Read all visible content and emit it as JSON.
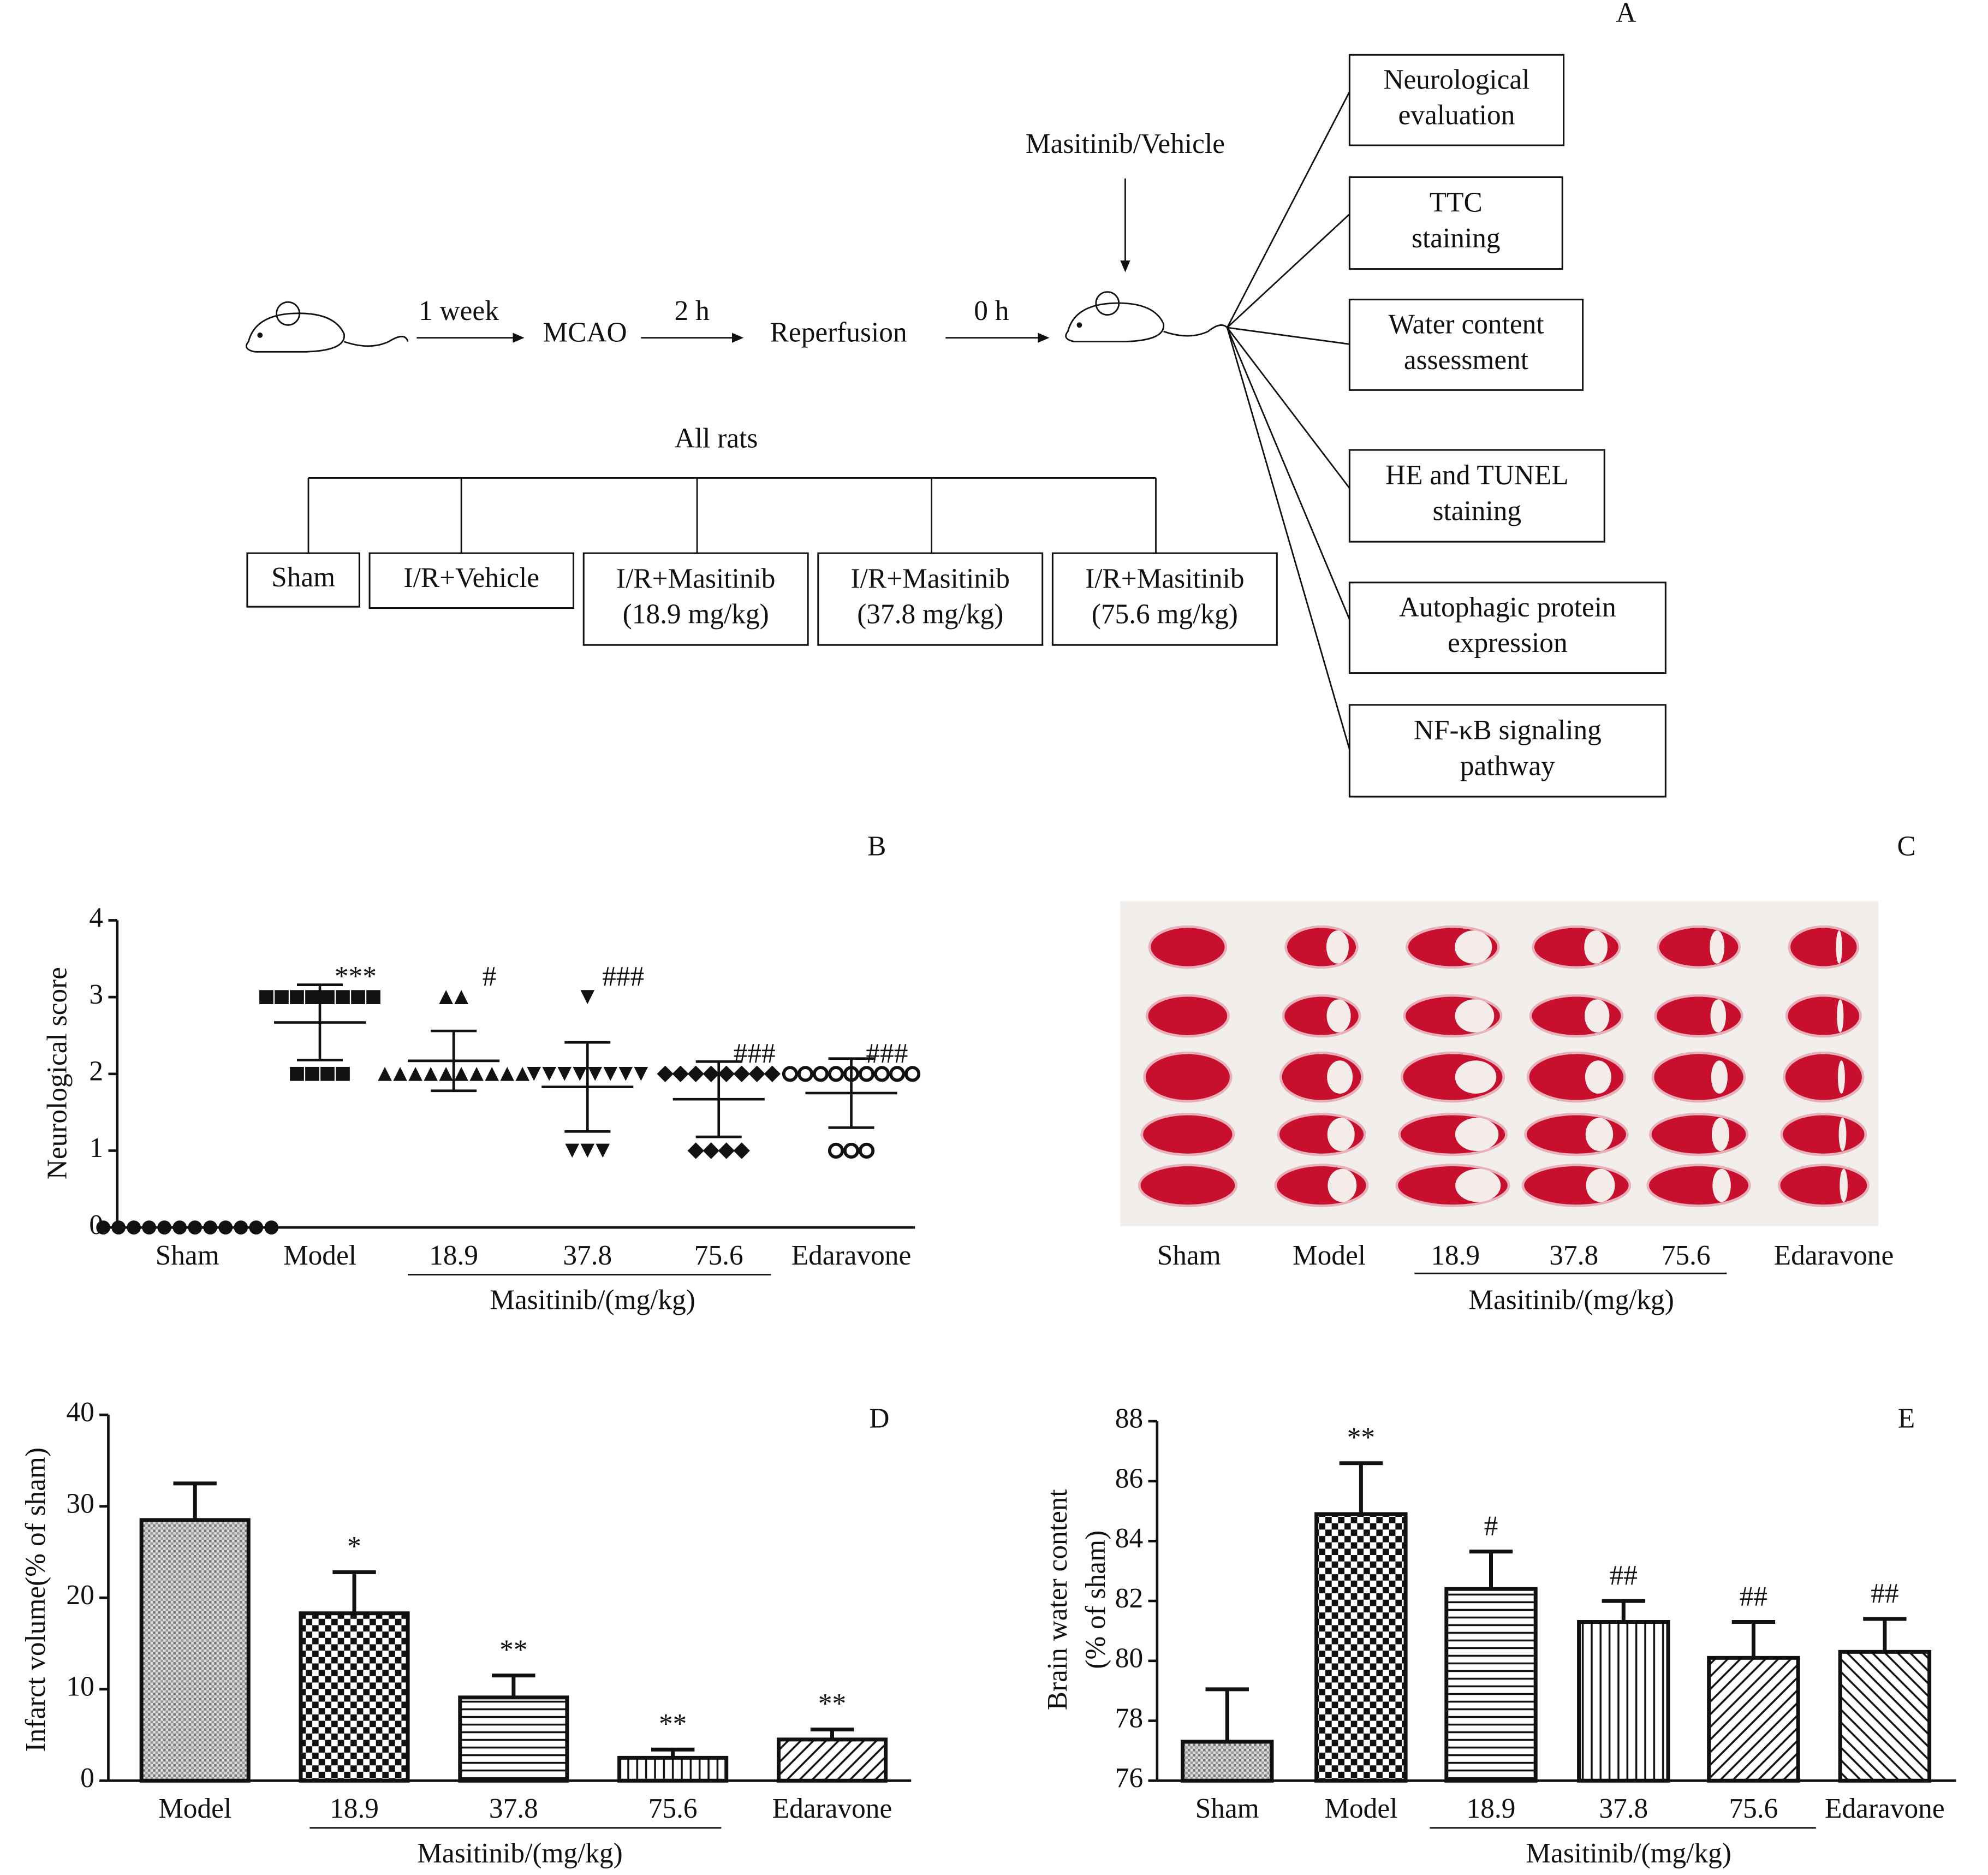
{
  "panel_labels": [
    "A",
    "B",
    "C",
    "D",
    "E"
  ],
  "diagram": {
    "timeline": [
      "1 week",
      "MCAO",
      "2 h",
      "Reperfusion",
      "0 h"
    ],
    "treatment": "Masitinib/Vehicle",
    "root": "All rats",
    "groups": [
      [
        "Sham"
      ],
      [
        "I/R+Vehicle"
      ],
      [
        "I/R+Masitinib",
        "(18.9 mg/kg)"
      ],
      [
        "I/R+Masitinib",
        "(37.8 mg/kg)"
      ],
      [
        "I/R+Masitinib",
        "(75.6 mg/kg)"
      ]
    ],
    "outcomes": [
      [
        "Neurological",
        "evaluation"
      ],
      [
        "TTC",
        "staining"
      ],
      [
        "Water content",
        "assessment"
      ],
      [
        "HE and TUNEL",
        "staining"
      ],
      [
        "Autophagic protein",
        "expression"
      ],
      [
        "NF-κB signaling",
        "pathway"
      ]
    ]
  },
  "brain_slices": {
    "categories": [
      "Sham",
      "Model",
      "18.9",
      "37.8",
      "75.6",
      "Edaravone"
    ],
    "group_label": "Masitinib/(mg/kg)"
  },
  "chart_data": [
    {
      "type": "dot",
      "y_label": "Neurological score",
      "categories": [
        "Sham",
        "Model",
        "18.9",
        "37.8",
        "75.6",
        "Edaravone"
      ],
      "group_label": "Masitinib/(mg/kg)",
      "points": [
        [
          0,
          0,
          0,
          0,
          0,
          0,
          0,
          0,
          0,
          0,
          0,
          0
        ],
        [
          3,
          3,
          3,
          3,
          3,
          3,
          3,
          3,
          2,
          2,
          2,
          2
        ],
        [
          3,
          3,
          2,
          2,
          2,
          2,
          2,
          2,
          2,
          2,
          2,
          2
        ],
        [
          3,
          2,
          2,
          2,
          2,
          2,
          2,
          2,
          2,
          1,
          1,
          1
        ],
        [
          2,
          2,
          2,
          2,
          2,
          2,
          2,
          2,
          1,
          1,
          1,
          1
        ],
        [
          2,
          2,
          2,
          2,
          2,
          2,
          2,
          2,
          2,
          1,
          1,
          1
        ]
      ],
      "markers": [
        "circle",
        "square",
        "triangle-up",
        "triangle-down",
        "diamond",
        "circle-open"
      ],
      "mean": [
        0,
        2.67,
        2.17,
        1.83,
        1.67,
        1.75
      ],
      "sd": [
        0,
        0.49,
        0.39,
        0.58,
        0.49,
        0.45
      ],
      "annotations": [
        null,
        "***",
        "#",
        "###",
        "###",
        "###"
      ],
      "ylim": [
        0,
        4
      ],
      "yticks": [
        0,
        1,
        2,
        3,
        4
      ]
    },
    {
      "type": "bar",
      "y_label": "Infarct volume(% of sham)",
      "categories": [
        "Model",
        "18.9",
        "37.8",
        "75.6",
        "Edaravone"
      ],
      "group_label": "Masitinib/(mg/kg)",
      "values": [
        28.5,
        18.3,
        9.1,
        2.5,
        4.5
      ],
      "errors": [
        4,
        4.5,
        2.4,
        0.9,
        1.1
      ],
      "annotations": [
        null,
        "*",
        "**",
        "**",
        "**"
      ],
      "ylim": [
        0,
        40
      ],
      "yticks": [
        0,
        10,
        20,
        30,
        40
      ]
    },
    {
      "type": "bar",
      "y_label": [
        "Brain water content",
        "(% of sham)"
      ],
      "categories": [
        "Sham",
        "Model",
        "18.9",
        "37.8",
        "75.6",
        "Edaravone"
      ],
      "group_label": "Masitinib/(mg/kg)",
      "values": [
        77.3,
        84.9,
        82.4,
        81.3,
        80.1,
        80.3
      ],
      "errors": [
        1.75,
        1.7,
        1.25,
        0.7,
        1.2,
        1.1
      ],
      "annotations": [
        null,
        "**",
        "#",
        "##",
        "##",
        "##"
      ],
      "ylim": [
        76,
        88
      ],
      "yticks": [
        76,
        78,
        80,
        82,
        84,
        86,
        88
      ]
    }
  ]
}
